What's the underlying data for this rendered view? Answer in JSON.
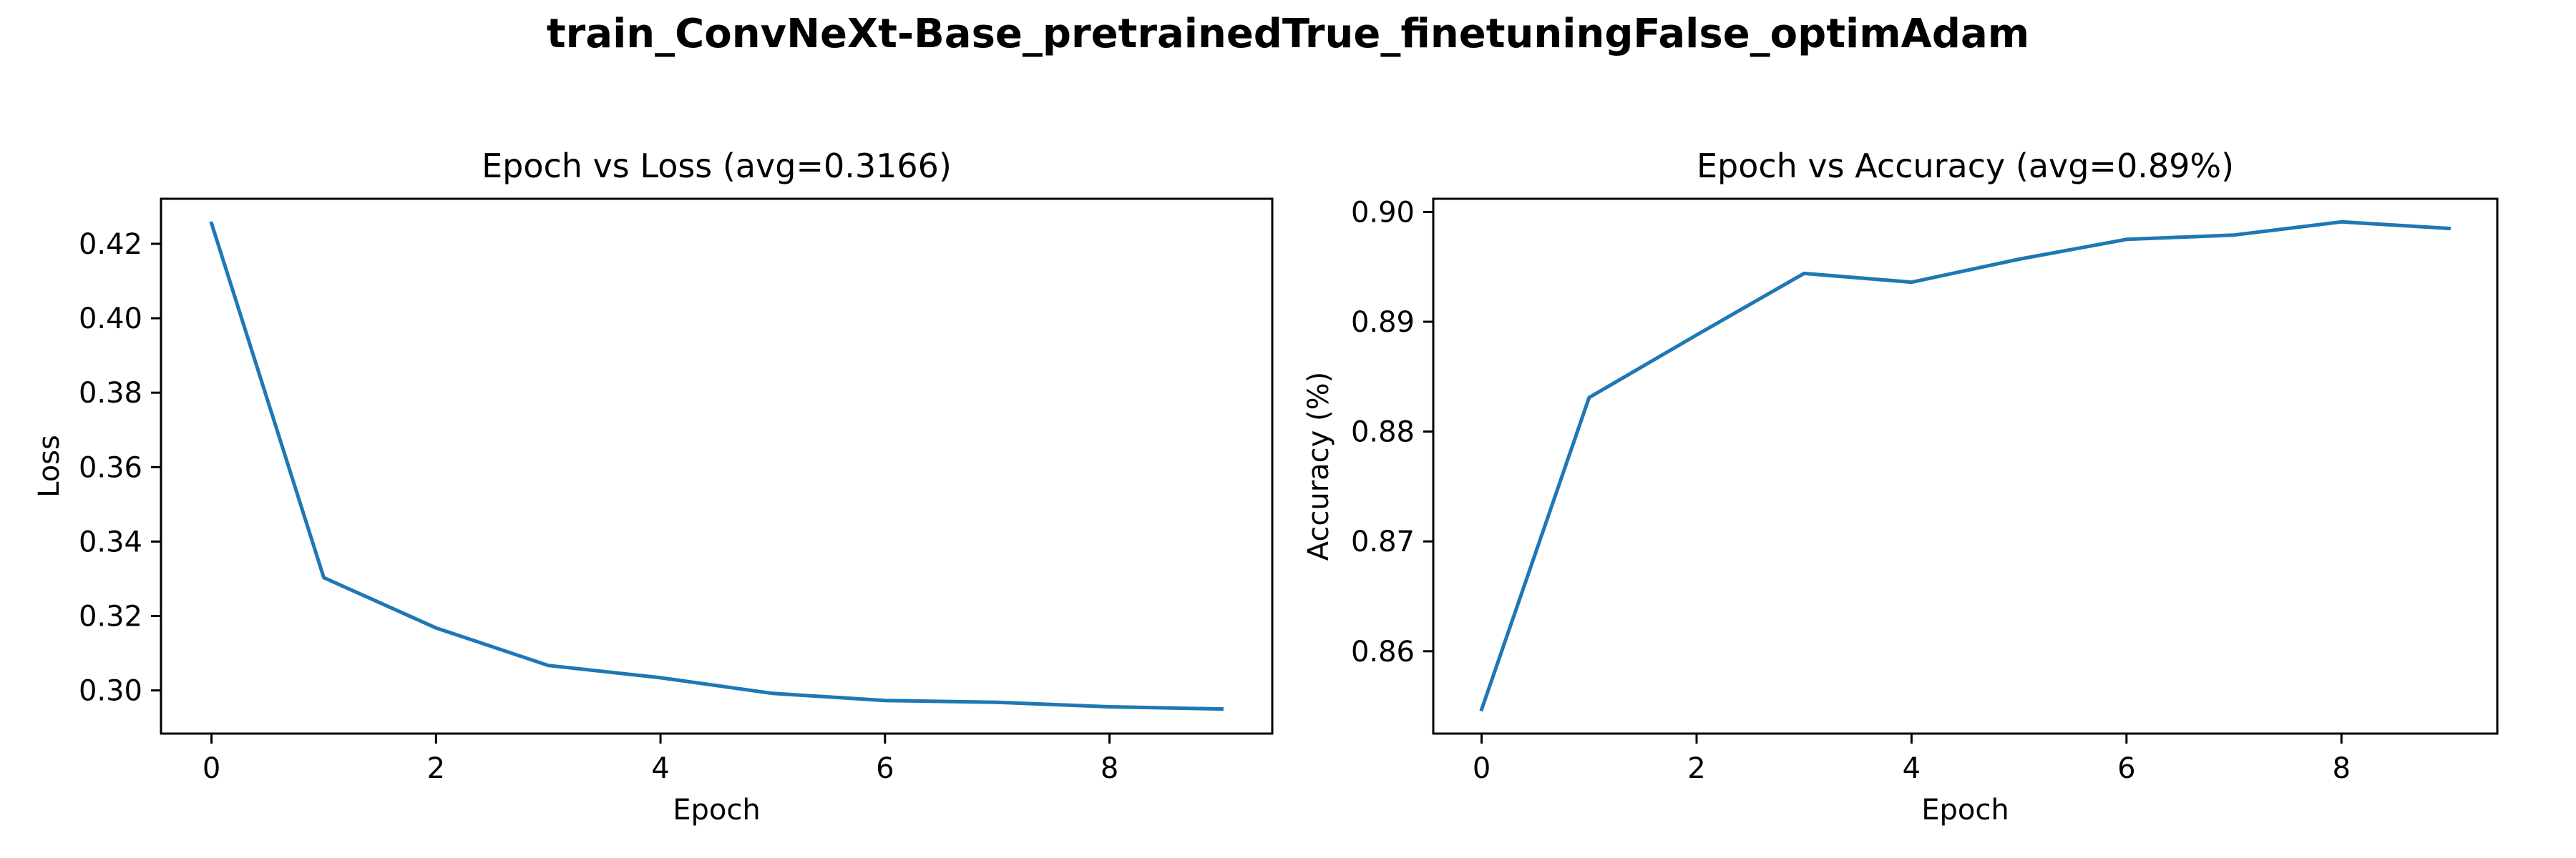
{
  "figure": {
    "title": "train_ConvNeXt-Base_pretrainedTrue_finetuningFalse_optimAdam"
  },
  "chart_data": [
    {
      "type": "line",
      "title": "Epoch vs Loss (avg=0.3166)",
      "xlabel": "Epoch",
      "ylabel": "Loss",
      "x": [
        0,
        1,
        2,
        3,
        4,
        5,
        6,
        7,
        8,
        9
      ],
      "series": [
        {
          "values": [
            0.4255,
            0.3303,
            0.3168,
            0.3067,
            0.3034,
            0.2992,
            0.2973,
            0.2968,
            0.2956,
            0.295
          ]
        }
      ],
      "xlim": [
        -0.45,
        9.45
      ],
      "ylim": [
        0.2884,
        0.4321
      ],
      "xticks": [
        0,
        2,
        4,
        6,
        8
      ],
      "yticks": [
        0.3,
        0.32,
        0.34,
        0.36,
        0.38,
        0.4,
        0.42
      ],
      "ytick_labels": [
        "0.30",
        "0.32",
        "0.34",
        "0.36",
        "0.38",
        "0.40",
        "0.42"
      ],
      "grid": false,
      "color": "#1f77b4"
    },
    {
      "type": "line",
      "title": "Epoch vs Accuracy (avg=0.89%)",
      "xlabel": "Epoch",
      "ylabel": "Accuracy (%)",
      "x": [
        0,
        1,
        2,
        3,
        4,
        5,
        6,
        7,
        8,
        9
      ],
      "series": [
        {
          "values": [
            0.8547,
            0.8831,
            0.8888,
            0.8944,
            0.8936,
            0.8957,
            0.8975,
            0.8979,
            0.8991,
            0.8985
          ]
        }
      ],
      "xlim": [
        -0.45,
        9.45
      ],
      "ylim": [
        0.8525,
        0.9012
      ],
      "xticks": [
        0,
        2,
        4,
        6,
        8
      ],
      "yticks": [
        0.86,
        0.87,
        0.88,
        0.89,
        0.9
      ],
      "ytick_labels": [
        "0.86",
        "0.87",
        "0.88",
        "0.89",
        "0.90"
      ],
      "grid": false,
      "color": "#1f77b4"
    }
  ]
}
